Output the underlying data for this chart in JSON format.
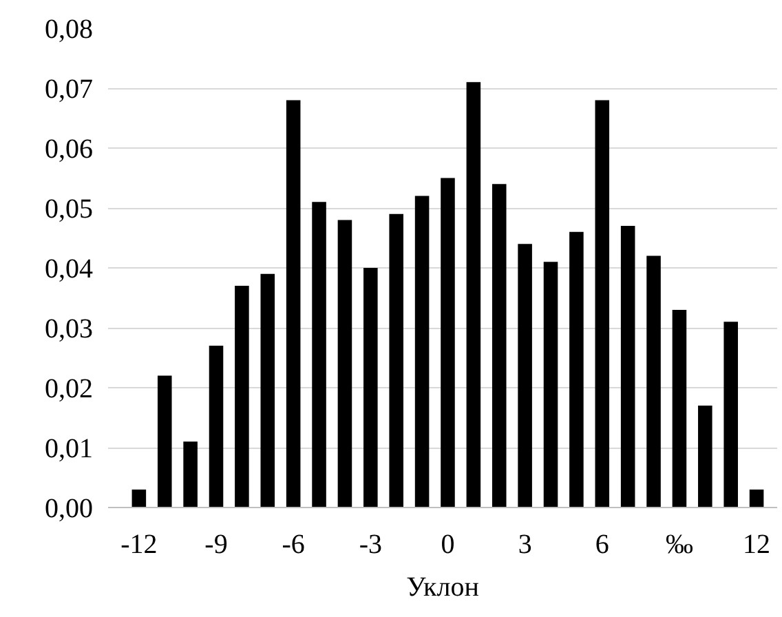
{
  "chart_data": {
    "type": "bar",
    "xlabel": "Уклон",
    "x": [
      -12,
      -11,
      -10,
      -9,
      -8,
      -7,
      -6,
      -5,
      -4,
      -3,
      -2,
      -1,
      0,
      1,
      2,
      3,
      4,
      5,
      6,
      7,
      8,
      9,
      10,
      11,
      12
    ],
    "values": [
      0.003,
      0.022,
      0.011,
      0.027,
      0.037,
      0.039,
      0.068,
      0.051,
      0.048,
      0.04,
      0.049,
      0.052,
      0.055,
      0.071,
      0.054,
      0.044,
      0.041,
      0.046,
      0.068,
      0.047,
      0.042,
      0.033,
      0.017,
      0.031,
      0.003
    ],
    "color": "#000000",
    "xlim": [
      -13.2,
      12.8
    ],
    "xticks": [
      -12,
      -9,
      -6,
      -3,
      0,
      3,
      6,
      {
        "value": 9,
        "label": "‰"
      },
      12
    ],
    "ylim": [
      0,
      0.08
    ],
    "yticks": [
      {
        "value": 0,
        "label": "0,00"
      },
      {
        "value": 0.01,
        "label": "0,01"
      },
      {
        "value": 0.02,
        "label": "0,02"
      },
      {
        "value": 0.03,
        "label": "0,03"
      },
      {
        "value": 0.04,
        "label": "0,04"
      },
      {
        "value": 0.05,
        "label": "0,05"
      },
      {
        "value": 0.06,
        "label": "0,06"
      },
      {
        "value": 0.07,
        "label": "0,07"
      },
      {
        "value": 0.08,
        "label": "0,08"
      }
    ],
    "grid": "y"
  }
}
